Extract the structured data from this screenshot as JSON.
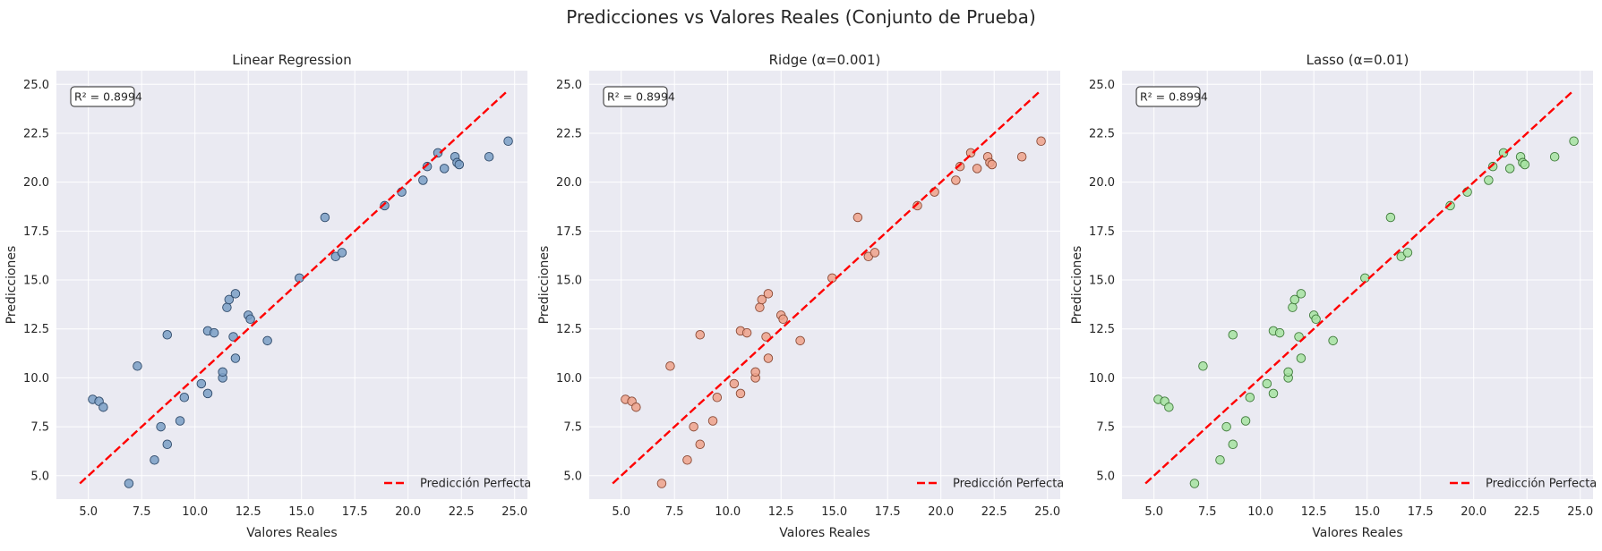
{
  "figure": {
    "suptitle": "Predicciones vs Valores Reales (Conjunto de Prueba)"
  },
  "colors": {
    "panel_bg": "#eaeaf2",
    "grid": "#ffffff",
    "reference_line": "#ff0000",
    "text": "#262626"
  },
  "chart_data": [
    {
      "type": "scatter",
      "title": "Linear Regression",
      "xlabel": "Valores Reales",
      "ylabel": "Predicciones",
      "xlim": [
        3.5,
        25.6
      ],
      "ylim": [
        3.8,
        25.7
      ],
      "xticks": [
        "5.0",
        "7.5",
        "10.0",
        "12.5",
        "15.0",
        "17.5",
        "20.0",
        "22.5",
        "25.0"
      ],
      "yticks": [
        "5.0",
        "7.5",
        "10.0",
        "12.5",
        "15.0",
        "17.5",
        "20.0",
        "22.5",
        "25.0"
      ],
      "grid": true,
      "annotation": "R² = 0.8994",
      "annotation_position": "top-left",
      "legend": [
        "Predicción Perfecta"
      ],
      "legend_position": "lower-right",
      "point_fill": "#7a9fc6",
      "point_edge": "#2f4a6a",
      "reference_line": {
        "label": "Predicción Perfecta",
        "style": "dashed",
        "x": [
          4.6,
          24.6
        ],
        "y": [
          4.6,
          24.6
        ]
      },
      "points": {
        "x": [
          5.2,
          5.5,
          5.7,
          6.9,
          7.3,
          8.1,
          8.4,
          8.7,
          8.7,
          9.3,
          9.5,
          10.3,
          10.6,
          10.6,
          10.9,
          11.3,
          11.3,
          11.5,
          11.6,
          11.8,
          11.9,
          11.9,
          12.5,
          12.6,
          13.4,
          14.9,
          16.1,
          16.6,
          16.9,
          18.9,
          19.7,
          20.7,
          20.9,
          21.4,
          21.7,
          22.2,
          22.3,
          22.4,
          23.8,
          24.7
        ],
        "y": [
          8.9,
          8.8,
          8.5,
          4.6,
          10.6,
          5.8,
          7.5,
          6.6,
          12.2,
          7.8,
          9.0,
          9.7,
          12.4,
          9.2,
          12.3,
          10.0,
          10.3,
          13.6,
          14.0,
          12.1,
          14.3,
          11.0,
          13.2,
          13.0,
          11.9,
          15.1,
          18.2,
          16.2,
          16.4,
          18.8,
          19.5,
          20.1,
          20.8,
          21.5,
          20.7,
          21.3,
          21.0,
          20.9,
          21.3,
          22.1
        ]
      }
    },
    {
      "type": "scatter",
      "title": "Ridge (α=0.001)",
      "xlabel": "Valores Reales",
      "ylabel": "Predicciones",
      "xlim": [
        3.5,
        25.6
      ],
      "ylim": [
        3.8,
        25.7
      ],
      "xticks": [
        "5.0",
        "7.5",
        "10.0",
        "12.5",
        "15.0",
        "17.5",
        "20.0",
        "22.5",
        "25.0"
      ],
      "yticks": [
        "5.0",
        "7.5",
        "10.0",
        "12.5",
        "15.0",
        "17.5",
        "20.0",
        "22.5",
        "25.0"
      ],
      "grid": true,
      "annotation": "R² = 0.8994",
      "annotation_position": "top-left",
      "legend": [
        "Predicción Perfecta"
      ],
      "legend_position": "lower-right",
      "point_fill": "#eea28b",
      "point_edge": "#8a4a36",
      "reference_line": {
        "label": "Predicción Perfecta",
        "style": "dashed",
        "x": [
          4.6,
          24.6
        ],
        "y": [
          4.6,
          24.6
        ]
      },
      "points": {
        "x": [
          5.2,
          5.5,
          5.7,
          6.9,
          7.3,
          8.1,
          8.4,
          8.7,
          8.7,
          9.3,
          9.5,
          10.3,
          10.6,
          10.6,
          10.9,
          11.3,
          11.3,
          11.5,
          11.6,
          11.8,
          11.9,
          11.9,
          12.5,
          12.6,
          13.4,
          14.9,
          16.1,
          16.6,
          16.9,
          18.9,
          19.7,
          20.7,
          20.9,
          21.4,
          21.7,
          22.2,
          22.3,
          22.4,
          23.8,
          24.7
        ],
        "y": [
          8.9,
          8.8,
          8.5,
          4.6,
          10.6,
          5.8,
          7.5,
          6.6,
          12.2,
          7.8,
          9.0,
          9.7,
          12.4,
          9.2,
          12.3,
          10.0,
          10.3,
          13.6,
          14.0,
          12.1,
          14.3,
          11.0,
          13.2,
          13.0,
          11.9,
          15.1,
          18.2,
          16.2,
          16.4,
          18.8,
          19.5,
          20.1,
          20.8,
          21.5,
          20.7,
          21.3,
          21.0,
          20.9,
          21.3,
          22.1
        ]
      }
    },
    {
      "type": "scatter",
      "title": "Lasso (α=0.01)",
      "xlabel": "Valores Reales",
      "ylabel": "Predicciones",
      "xlim": [
        3.5,
        25.6
      ],
      "ylim": [
        3.8,
        25.7
      ],
      "xticks": [
        "5.0",
        "7.5",
        "10.0",
        "12.5",
        "15.0",
        "17.5",
        "20.0",
        "22.5",
        "25.0"
      ],
      "yticks": [
        "5.0",
        "7.5",
        "10.0",
        "12.5",
        "15.0",
        "17.5",
        "20.0",
        "22.5",
        "25.0"
      ],
      "grid": true,
      "annotation": "R² = 0.8994",
      "annotation_position": "top-left",
      "legend": [
        "Predicción Perfecta"
      ],
      "legend_position": "lower-right",
      "point_fill": "#a6e3a1",
      "point_edge": "#3f7a3a",
      "reference_line": {
        "label": "Predicción Perfecta",
        "style": "dashed",
        "x": [
          4.6,
          24.6
        ],
        "y": [
          4.6,
          24.6
        ]
      },
      "points": {
        "x": [
          5.2,
          5.5,
          5.7,
          6.9,
          7.3,
          8.1,
          8.4,
          8.7,
          8.7,
          9.3,
          9.5,
          10.3,
          10.6,
          10.6,
          10.9,
          11.3,
          11.3,
          11.5,
          11.6,
          11.8,
          11.9,
          11.9,
          12.5,
          12.6,
          13.4,
          14.9,
          16.1,
          16.6,
          16.9,
          18.9,
          19.7,
          20.7,
          20.9,
          21.4,
          21.7,
          22.2,
          22.3,
          22.4,
          23.8,
          24.7
        ],
        "y": [
          8.9,
          8.8,
          8.5,
          4.6,
          10.6,
          5.8,
          7.5,
          6.6,
          12.2,
          7.8,
          9.0,
          9.7,
          12.4,
          9.2,
          12.3,
          10.0,
          10.3,
          13.6,
          14.0,
          12.1,
          14.3,
          11.0,
          13.2,
          13.0,
          11.9,
          15.1,
          18.2,
          16.2,
          16.4,
          18.8,
          19.5,
          20.1,
          20.8,
          21.5,
          20.7,
          21.3,
          21.0,
          20.9,
          21.3,
          22.1
        ]
      }
    }
  ]
}
